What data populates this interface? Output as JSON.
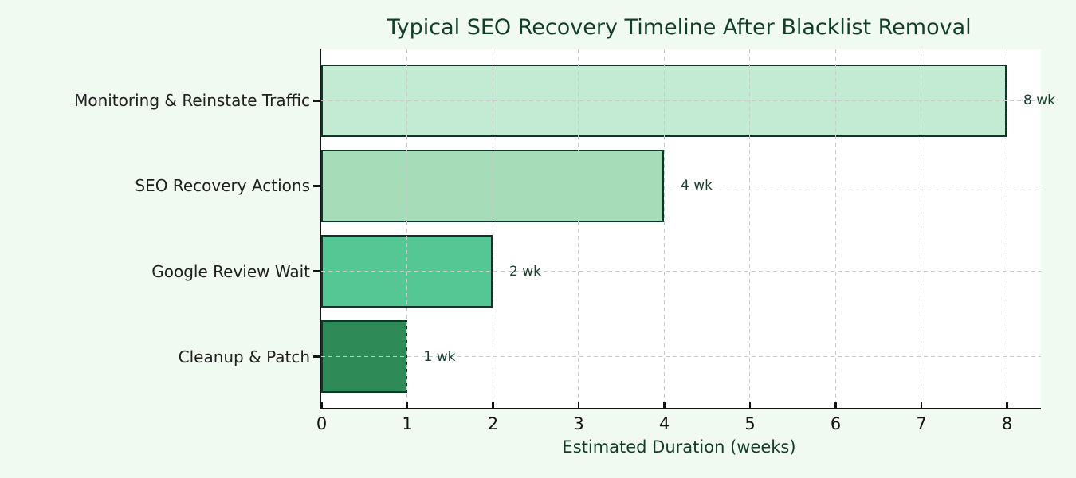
{
  "chart_data": {
    "type": "bar",
    "orientation": "horizontal",
    "title": "Typical SEO Recovery Timeline After Blacklist Removal",
    "xlabel": "Estimated Duration (weeks)",
    "categories": [
      "Monitoring & Reinstate Traffic",
      "SEO Recovery Actions",
      "Google Review Wait",
      "Cleanup & Patch"
    ],
    "values": [
      8,
      4,
      2,
      1
    ],
    "value_labels": [
      "8 wk",
      "4 wk",
      "2 wk",
      "1 wk"
    ],
    "x_ticks": [
      "0",
      "1",
      "2",
      "3",
      "4",
      "5",
      "6",
      "7",
      "8"
    ],
    "xlim": [
      0,
      8.4
    ],
    "ylim": [
      -0.6,
      3.6
    ],
    "grid": "dashed, x and y, drawn over bars",
    "legend": "none",
    "bar_colors": [
      "#c3ead3",
      "#a6dcb7",
      "#55c795",
      "#2e8b57"
    ],
    "bar_edge_color": "#0d3828",
    "colors": {
      "figure_bg": "#f0faf0",
      "plot_bg": "#ffffff",
      "title": "#123d2b",
      "axis_label": "#123d2b",
      "value_label": "#17402c",
      "tick_label": "#141414",
      "category_label": "#1f1f1f",
      "grid": "#c9c9c9",
      "spine": "#141414"
    }
  }
}
